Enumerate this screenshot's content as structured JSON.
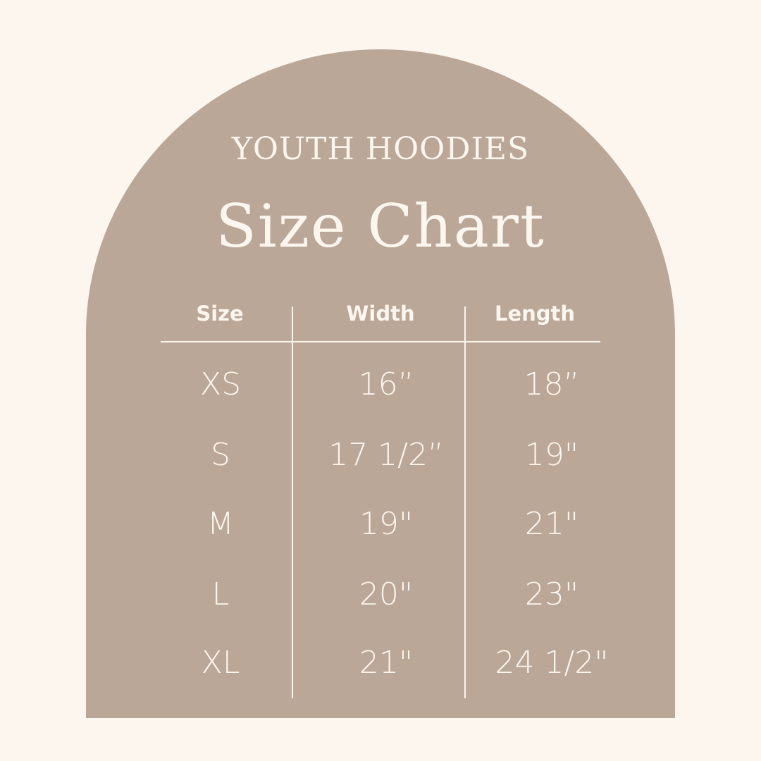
{
  "colors": {
    "background": "#fdf6ef",
    "arch": "#bba797",
    "text": "#fdf6ee"
  },
  "subtitle": "YOUTH HOODIES",
  "title": "Size Chart",
  "table": {
    "headers": [
      "Size",
      "Width",
      "Length"
    ],
    "rows": [
      [
        "XS",
        "16”",
        "18”"
      ],
      [
        "S",
        "17 1/2”",
        "19\""
      ],
      [
        "M",
        "19\"",
        "21\""
      ],
      [
        "L",
        "20\"",
        "23\""
      ],
      [
        "XL",
        "21\"",
        "24 1/2\""
      ]
    ]
  }
}
